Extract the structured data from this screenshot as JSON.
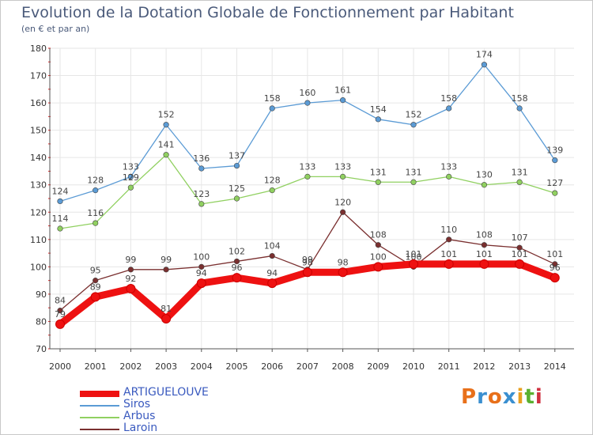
{
  "chart_data": {
    "type": "line",
    "title": "Evolution de la Dotation Globale de Fonctionnement par Habitant",
    "subtitle": "(en € et par an)",
    "xlabel": "",
    "ylabel": "",
    "ylim": [
      70,
      180
    ],
    "yticks": [
      70,
      80,
      90,
      100,
      110,
      120,
      130,
      140,
      150,
      160,
      170,
      180
    ],
    "categories": [
      "2000",
      "2001",
      "2002",
      "2003",
      "2004",
      "2005",
      "2006",
      "2007",
      "2008",
      "2009",
      "2010",
      "2011",
      "2012",
      "2013",
      "2014"
    ],
    "series": [
      {
        "name": "ARTIGUELOUVE",
        "color": "#ee1111",
        "values": [
          79,
          89,
          92,
          81,
          94,
          96,
          94,
          98,
          98,
          100,
          101,
          101,
          101,
          101,
          96
        ]
      },
      {
        "name": "Siros",
        "color": "#5b9bd5",
        "values": [
          124,
          128,
          133,
          152,
          136,
          137,
          158,
          160,
          161,
          154,
          152,
          158,
          174,
          158,
          139
        ]
      },
      {
        "name": "Arbus",
        "color": "#90d060",
        "values": [
          114,
          116,
          129,
          141,
          123,
          125,
          128,
          133,
          133,
          131,
          131,
          133,
          130,
          131,
          127
        ]
      },
      {
        "name": "Laroin",
        "color": "#7a2f2f",
        "values": [
          84,
          95,
          99,
          99,
          100,
          102,
          104,
          99,
          120,
          108,
          100,
          110,
          108,
          107,
          101
        ]
      }
    ]
  },
  "logo": {
    "text": "Proxiti",
    "letters": [
      "P",
      "r",
      "o",
      "x",
      "i",
      "t",
      "i"
    ],
    "colors": [
      "#e8701a",
      "#3a8fd0",
      "#e8701a",
      "#3a8fd0",
      "#e8a020",
      "#5ab030",
      "#d03040"
    ]
  }
}
